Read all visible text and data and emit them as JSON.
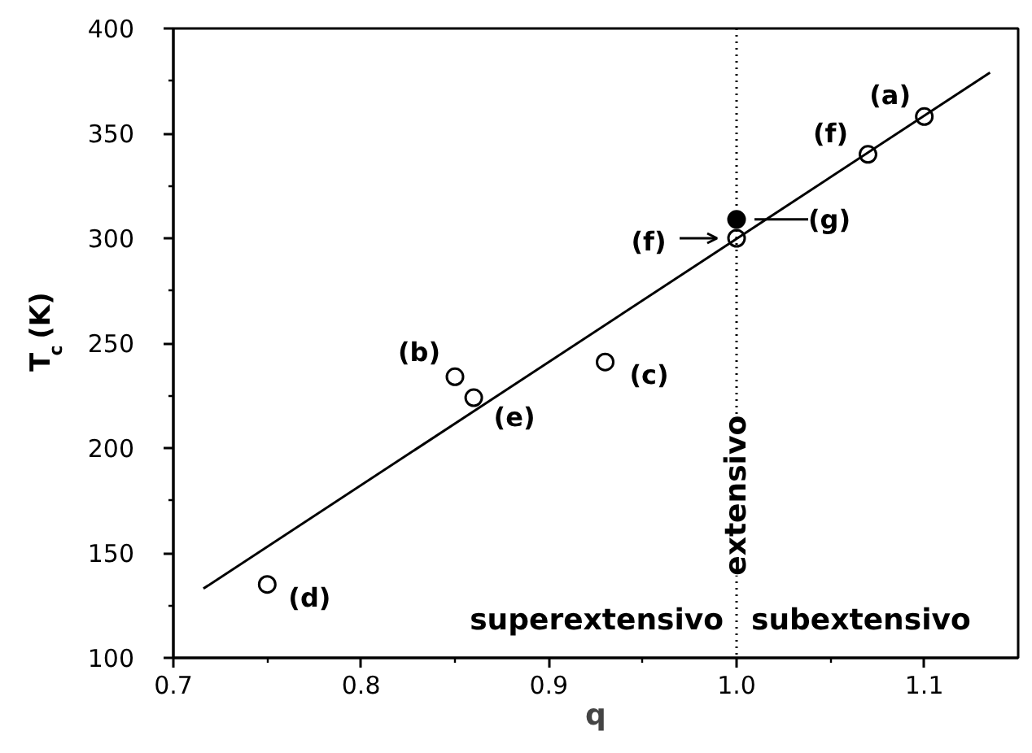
{
  "chart_data": {
    "type": "scatter",
    "xlabel": "q",
    "ylabel": "T$_{c}$ (K)",
    "xlim": [
      0.7,
      1.15
    ],
    "xticks": [
      0.7,
      {
        "value": 0.75,
        "label": null
      },
      0.8,
      {
        "value": 0.85,
        "label": null
      },
      0.9,
      {
        "value": 0.95,
        "label": null
      },
      {
        "value": 1.0,
        "label": "1.0"
      },
      {
        "value": 1.05,
        "label": null
      },
      1.1
    ],
    "ylim": [
      100,
      400
    ],
    "yticks": [
      100,
      {
        "value": 125,
        "label": null
      },
      150,
      {
        "value": 175,
        "label": null
      },
      200,
      {
        "value": 225,
        "label": null
      },
      250,
      {
        "value": 275,
        "label": null
      },
      300,
      {
        "value": 325,
        "label": null
      },
      350,
      {
        "value": 375,
        "label": null
      },
      400
    ],
    "series": [
      {
        "color": "#000000",
        "marker": "circle",
        "x": [
          0.75,
          0.85,
          0.86,
          0.93,
          1.0,
          1.07,
          1.1
        ],
        "values": [
          135,
          234,
          224,
          241,
          300,
          340,
          358
        ]
      },
      {
        "color": "#000000",
        "marker": "circle",
        "x": [
          1.0
        ],
        "values": [
          309
        ]
      },
      {
        "type": "line",
        "color": "#000000",
        "x": [
          0.716,
          1.135
        ],
        "values": [
          133,
          379
        ]
      }
    ],
    "ref_lines": [
      {
        "axis": "x",
        "value": 1.0,
        "label": "extensivo",
        "color": "#000000",
        "line_style": "dotted"
      }
    ],
    "annotations": [
      {
        "text": "(a)",
        "x": 1.1,
        "y": 358
      },
      {
        "text": "(f)",
        "x": 1.07,
        "y": 340
      },
      {
        "text": "(g)",
        "x": 1.0,
        "y": 309
      },
      {
        "text": "(f)",
        "x": 1.0,
        "y": 300
      },
      {
        "text": "(b)",
        "x": 0.85,
        "y": 234
      },
      {
        "text": "(e)",
        "x": 0.86,
        "y": 224
      },
      {
        "text": "(c)",
        "x": 0.93,
        "y": 241
      },
      {
        "text": "(d)",
        "x": 0.75,
        "y": 135
      },
      "superextensivo",
      "subextensivo"
    ]
  }
}
